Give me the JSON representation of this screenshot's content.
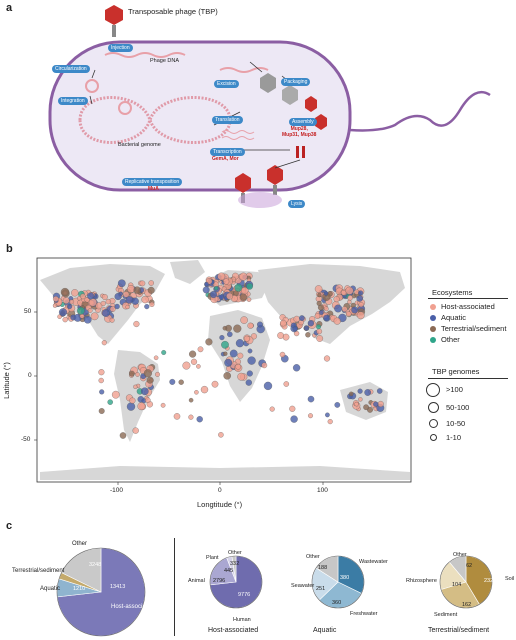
{
  "panel_a": {
    "label": "a",
    "title": "Transposable phage (TBP)",
    "phage_dna": "Phage DNA",
    "bacterial_genome": "Bacterial genome",
    "steps": {
      "injection": "Injection",
      "circularization": "Circularization",
      "integration": "Integration",
      "excision": "Excision",
      "packaging": "Packaging",
      "assembly": "Assembly",
      "translation": "Translation",
      "transcription": "Transcription",
      "replicative": "Replicative transposition",
      "lysis": "Lysis"
    },
    "genes": {
      "assembly": "Mup28,\nMup31, Mup38",
      "transcription": "GemA, Mor",
      "replicative": "MuA"
    }
  },
  "panel_b": {
    "label": "b",
    "xlabel": "Longtitude (°)",
    "ylabel": "Latitude (°)",
    "xticks": [
      "-100",
      "0",
      "100"
    ],
    "yticks": [
      "50",
      "0",
      "-50"
    ],
    "legend_title": "Ecosystems",
    "ecosystems": [
      {
        "name": "Host-associated",
        "color": "#f0a090"
      },
      {
        "name": "Aquatic",
        "color": "#4a5fa8"
      },
      {
        "name": "Terrestrial/sediment",
        "color": "#8b6a55"
      },
      {
        "name": "Other",
        "color": "#2fa58a"
      }
    ],
    "size_title": "TBP genomes",
    "sizes": [
      ">100",
      "50-100",
      "10-50",
      "1-10"
    ]
  },
  "panel_c": {
    "label": "c",
    "chart_data": [
      {
        "type": "pie",
        "title": "",
        "slices": [
          {
            "label": "Host-associated",
            "value": 13413,
            "color": "#7b79b8"
          },
          {
            "label": "Aquatic",
            "value": 1210,
            "color": "#8fb4cf"
          },
          {
            "label": "Terrestrial/sediment",
            "value": 445,
            "color": "#c4aa6c"
          },
          {
            "label": "Other",
            "value": 3248,
            "color": "#c9c9c9"
          }
        ]
      },
      {
        "type": "pie",
        "title": "Host-associated",
        "slices": [
          {
            "label": "Human",
            "value": 9776,
            "color": "#6f6cae"
          },
          {
            "label": "Animal",
            "value": 2796,
            "color": "#aaa7d2"
          },
          {
            "label": "Plant",
            "value": 445,
            "color": "#d4d2e8"
          },
          {
            "label": "Other",
            "value": 332,
            "color": "#c7c7c7"
          }
        ]
      },
      {
        "type": "pie",
        "title": "Aquatic",
        "slices": [
          {
            "label": "Wastewater",
            "value": 380,
            "color": "#3b7ca5"
          },
          {
            "label": "Freshwater",
            "value": 360,
            "color": "#8eb8d2"
          },
          {
            "label": "Seawater",
            "value": 251,
            "color": "#c9dcea"
          },
          {
            "label": "Other",
            "value": 188,
            "color": "#c7c7c7"
          }
        ]
      },
      {
        "type": "pie",
        "title": "Terrestrial/sediment",
        "slices": [
          {
            "label": "Soil",
            "value": 232,
            "color": "#b08c3e"
          },
          {
            "label": "Sediment",
            "value": 162,
            "color": "#d4bd85"
          },
          {
            "label": "Rhizosphere",
            "value": 104,
            "color": "#ebdfbf"
          },
          {
            "label": "Other",
            "value": 62,
            "color": "#c7c7c7"
          }
        ]
      }
    ]
  }
}
